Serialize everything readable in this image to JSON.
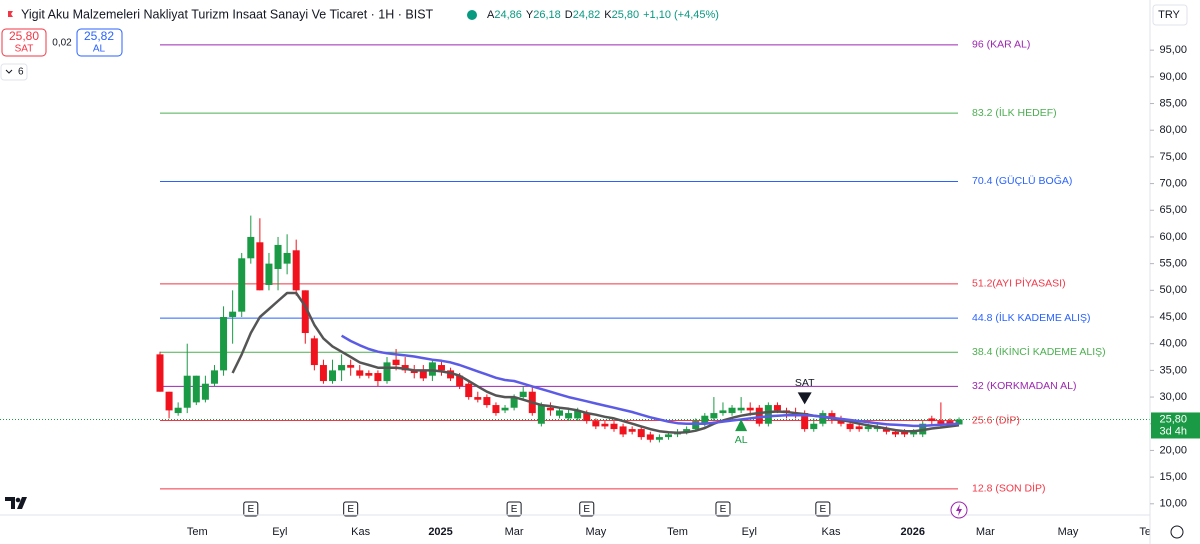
{
  "header": {
    "title": "Yigit Aku Malzemeleri Nakliyat Turizm Insaat Sanayi Ve Ticaret · 1H · BIST",
    "ohlc": [
      {
        "key": "A",
        "value": "24,86"
      },
      {
        "key": "Y",
        "value": "26,18"
      },
      {
        "key": "D",
        "value": "24,82"
      },
      {
        "key": "K",
        "value": "25,80"
      }
    ],
    "change": "+1,10 (+4,45%)",
    "sell_price": "25,80",
    "sell_label": "SAT",
    "spread": "0,02",
    "buy_price": "25,82",
    "buy_label": "AL",
    "indicator_count": "6",
    "currency": "TRY"
  },
  "chart_data": {
    "type": "candlestick",
    "up_color": "#1a9a45",
    "down_color": "#f0131d",
    "categories": [
      null,
      null,
      null,
      null,
      null,
      null,
      null,
      null,
      null,
      null,
      null,
      null,
      null,
      null,
      null,
      null,
      null,
      null,
      null,
      null,
      null,
      null,
      null,
      null,
      null,
      null,
      null,
      null,
      null,
      null,
      null,
      null,
      null,
      null,
      null,
      null,
      null,
      null,
      null,
      null,
      null,
      null,
      null,
      null,
      null,
      null,
      null,
      null,
      null,
      null,
      null,
      null,
      null,
      null,
      null,
      null,
      null,
      null,
      null,
      null,
      null,
      null,
      null,
      null,
      null,
      null,
      null,
      null,
      null,
      null,
      null,
      null,
      null,
      null,
      null,
      null,
      null,
      null,
      null,
      null,
      null,
      null,
      null,
      null,
      null,
      null,
      null,
      null,
      null
    ],
    "open": [
      38,
      31,
      27,
      28,
      29,
      29.5,
      32.5,
      35,
      45,
      46,
      56,
      59,
      51,
      54,
      55,
      57.5,
      50,
      41,
      36,
      33,
      35,
      36,
      35,
      34.5,
      34.5,
      33,
      37,
      36,
      35,
      35,
      34,
      36,
      35,
      34,
      32.5,
      30,
      30,
      28.5,
      27.5,
      28,
      30,
      31,
      25,
      28,
      26.5,
      26,
      26,
      27,
      25.5,
      25,
      25,
      24.5,
      24,
      24,
      23,
      22,
      22.5,
      23,
      23.5,
      24,
      25,
      26,
      27,
      27,
      27.5,
      28,
      28,
      25,
      28.5,
      27.5,
      27,
      27,
      24,
      25,
      27,
      26,
      25,
      24.5,
      24,
      24,
      24,
      23.5,
      23.5,
      23,
      23,
      26,
      25.5,
      25.5,
      24.86
    ],
    "high": [
      38.5,
      31,
      29,
      40,
      34,
      34,
      36,
      47,
      50,
      57,
      64,
      63.5,
      57,
      60,
      60.5,
      59.5,
      50,
      41.5,
      37,
      37,
      38,
      37,
      36,
      35,
      35,
      37.5,
      39,
      37.5,
      36,
      36,
      37,
      37,
      35.5,
      34.5,
      33,
      31,
      30.5,
      29,
      28.5,
      30.5,
      32,
      32,
      29,
      29,
      28,
      28,
      28,
      27.5,
      26,
      25.5,
      25.5,
      25,
      24.5,
      24.5,
      23.5,
      23,
      23.5,
      24,
      24.5,
      26,
      27,
      30,
      29,
      28.5,
      30,
      29,
      28.5,
      29,
      29,
      28,
      28,
      27.5,
      26,
      27.5,
      27.5,
      26.5,
      25.5,
      25,
      25,
      25,
      24.5,
      24,
      24,
      24,
      25.5,
      26.5,
      29,
      26,
      26.18
    ],
    "low": [
      31,
      26,
      26.5,
      27,
      28.5,
      29,
      32,
      34,
      40,
      45,
      55,
      50,
      50,
      50,
      53,
      49,
      40,
      35,
      32.5,
      32.5,
      33,
      34,
      33.5,
      33.5,
      32,
      32.5,
      35,
      34.5,
      33.5,
      33,
      33,
      34,
      33,
      31.5,
      29.5,
      29,
      28,
      26.5,
      27,
      27.5,
      29.5,
      26.5,
      24.5,
      26.5,
      26,
      25.5,
      25.5,
      25,
      24,
      24,
      23.5,
      22.5,
      23,
      22,
      21.5,
      21.5,
      22,
      22.5,
      23,
      23.5,
      24.5,
      25.5,
      26.5,
      26.5,
      27,
      26.5,
      24.5,
      24.5,
      27,
      26,
      26,
      23.5,
      23.5,
      24.5,
      25,
      24.5,
      23.5,
      23.5,
      23.5,
      23.5,
      23,
      22.5,
      22.5,
      22.5,
      22.5,
      24.5,
      24.5,
      24.5,
      24.82
    ],
    "close": [
      31,
      27.5,
      28,
      34,
      34,
      32.5,
      35,
      45,
      46,
      56,
      60,
      50,
      55,
      58.5,
      57,
      50,
      42,
      36,
      33,
      35,
      36,
      35.5,
      34,
      34,
      33,
      36.5,
      36,
      35,
      34.5,
      33.5,
      36.5,
      35,
      33.5,
      32,
      30,
      29.5,
      28.5,
      27,
      28,
      30,
      31,
      27,
      28.5,
      27.5,
      27.5,
      27,
      27.5,
      25.5,
      24.5,
      24.5,
      24,
      23,
      23.5,
      22.5,
      22,
      22.5,
      23,
      23.5,
      24,
      25.5,
      26.5,
      27,
      27.5,
      28,
      28,
      27.5,
      25,
      28.5,
      27.5,
      27,
      26.5,
      24,
      25,
      27,
      26,
      25,
      24,
      24,
      24.5,
      24.5,
      23.5,
      23,
      23,
      23.5,
      25,
      25.5,
      25,
      25,
      25.8
    ],
    "moving_averages": [
      {
        "color": "#555555",
        "values": [
          null,
          null,
          null,
          null,
          null,
          null,
          null,
          null,
          34.5,
          38,
          42,
          45,
          46.5,
          48,
          49.5,
          49.5,
          47,
          43.5,
          41,
          39.5,
          38.5,
          37.5,
          36.5,
          36,
          35.5,
          35.5,
          35.5,
          35.3,
          35,
          35,
          35,
          34.8,
          34.5,
          34,
          33,
          32,
          31,
          30.3,
          30,
          30,
          29.5,
          29,
          28.5,
          28.3,
          28,
          27.8,
          27.5,
          27,
          26.7,
          26.3,
          26,
          25.5,
          25,
          24.5,
          24,
          23.6,
          23.4,
          23.3,
          23.4,
          23.7,
          24.2,
          25,
          25.6,
          26.1,
          26.5,
          26.8,
          27,
          27.2,
          27.3,
          27.2,
          27,
          26.8,
          26.5,
          26.3,
          26,
          25.7,
          25.4,
          25,
          24.7,
          24.4,
          24.1,
          23.8,
          23.6,
          23.6,
          23.8,
          24.1,
          24.3,
          24.5,
          24.7
        ]
      },
      {
        "color": "#5b5be6",
        "values": [
          null,
          null,
          null,
          null,
          null,
          null,
          null,
          null,
          null,
          null,
          null,
          null,
          null,
          null,
          null,
          null,
          null,
          null,
          null,
          null,
          41.5,
          40.5,
          39.7,
          39,
          38.5,
          38.2,
          38,
          37.8,
          37.6,
          37.3,
          37,
          36.8,
          36.5,
          36,
          35.4,
          34.8,
          34.2,
          33.6,
          33.2,
          33,
          32.5,
          32,
          31.5,
          31,
          30.5,
          30,
          29.6,
          29.2,
          28.8,
          28.4,
          28,
          27.6,
          27.2,
          26.7,
          26.2,
          25.8,
          25.4,
          25.1,
          25,
          25,
          25,
          25.2,
          25.4,
          25.6,
          25.8,
          26,
          26.2,
          26.4,
          26.5,
          26.6,
          26.6,
          26.6,
          26.5,
          26.3,
          26.1,
          25.9,
          25.7,
          25.5,
          25.3,
          25.1,
          24.9,
          24.8,
          24.7,
          24.6,
          24.6,
          24.7,
          24.8,
          24.9,
          25
        ]
      }
    ],
    "levels": [
      {
        "value": 96,
        "label": "96 (KAR AL)",
        "color": "#9c27b0"
      },
      {
        "value": 83.2,
        "label": "83.2 (İLK HEDEF)",
        "color": "#4caf50"
      },
      {
        "value": 70.4,
        "label": "70.4 (GÜÇLÜ BOĞA)",
        "color": "#2962ff"
      },
      {
        "value": 51.2,
        "label": "51.2(AYI PİYASASI)",
        "color": "#f23645"
      },
      {
        "value": 44.8,
        "label": "44.8 (İLK KADEME ALIŞ)",
        "color": "#2962ff"
      },
      {
        "value": 38.4,
        "label": "38.4 (İKİNCİ KADEME ALIŞ)",
        "color": "#4caf50"
      },
      {
        "value": 32,
        "label": "32 (KORKMADAN AL)",
        "color": "#9c27b0"
      },
      {
        "value": 25.6,
        "label": "25.6 (DİP)",
        "color": "#f23645"
      },
      {
        "value": 12.8,
        "label": "12.8 (SON DİP)",
        "color": "#f23645"
      }
    ],
    "last_price": {
      "value": 25.8,
      "label": "25,80",
      "countdown": "3d 4h",
      "color": "#1a9a45"
    },
    "signals": [
      {
        "index": 64,
        "text": "AL",
        "kind": "buy",
        "color": "#1a9a45"
      },
      {
        "index": 71,
        "text": "SAT",
        "kind": "sell",
        "color": "#131722"
      }
    ],
    "earnings": [
      {
        "index": 10,
        "label": "E"
      },
      {
        "index": 21,
        "label": "E"
      },
      {
        "index": 39,
        "label": "E"
      },
      {
        "index": 47,
        "label": "E"
      },
      {
        "index": 62,
        "label": "E"
      },
      {
        "index": 73,
        "label": "E"
      }
    ],
    "ylim": [
      7.9,
      104.4
    ],
    "yticks": [
      {
        "value": 95,
        "label": "95,00"
      },
      {
        "value": 90,
        "label": "90,00"
      },
      {
        "value": 85,
        "label": "85,00"
      },
      {
        "value": 80,
        "label": "80,00"
      },
      {
        "value": 75,
        "label": "75,00"
      },
      {
        "value": 70,
        "label": "70,00"
      },
      {
        "value": 65,
        "label": "65,00"
      },
      {
        "value": 60,
        "label": "60,00"
      },
      {
        "value": 55,
        "label": "55,00"
      },
      {
        "value": 50,
        "label": "50,00"
      },
      {
        "value": 45,
        "label": "45,00"
      },
      {
        "value": 40,
        "label": "40,00"
      },
      {
        "value": 35,
        "label": "35,00"
      },
      {
        "value": 30,
        "label": "30,00"
      },
      {
        "value": 25,
        "label": "25,00"
      },
      {
        "value": 20,
        "label": "20,00"
      },
      {
        "value": 15,
        "label": "15,00"
      },
      {
        "value": 10,
        "label": "10,00"
      }
    ],
    "xlim": [
      -17.62,
      109.03
    ],
    "xticks": [
      {
        "value": 4.1,
        "label": "Tem"
      },
      {
        "value": 13.2,
        "label": "Eyl"
      },
      {
        "value": 22.1,
        "label": "Kas"
      },
      {
        "value": 30.9,
        "label": "2025"
      },
      {
        "value": 39,
        "label": "Mar"
      },
      {
        "value": 48,
        "label": "May"
      },
      {
        "value": 57,
        "label": "Tem"
      },
      {
        "value": 64.9,
        "label": "Eyl"
      },
      {
        "value": 73.9,
        "label": "Kas"
      },
      {
        "value": 82.9,
        "label": "2026"
      },
      {
        "value": 90.9,
        "label": "Mar"
      },
      {
        "value": 100,
        "label": "May"
      },
      {
        "value": 109,
        "label": "Tem"
      }
    ]
  }
}
